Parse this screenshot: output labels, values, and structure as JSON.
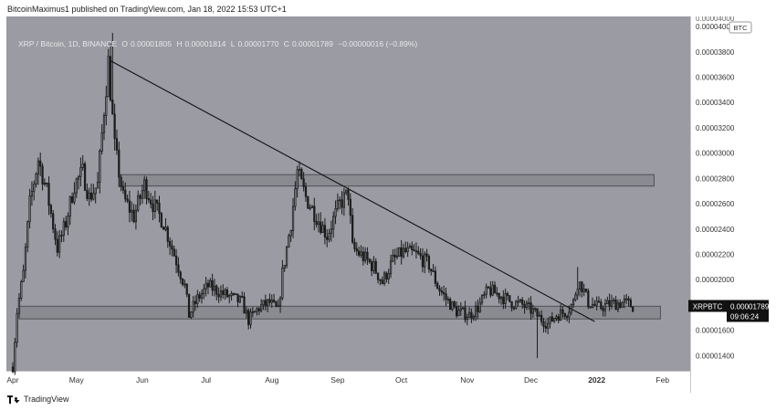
{
  "header": {
    "publisher_line": "BitcoinMaximus1 published on TradingView.com, Jan 18, 2022 15:53 UTC+1"
  },
  "legend": {
    "symbol_desc": "XRP / Bitcoin, 1D, BINANCE",
    "open_label": "O",
    "open": "0.00001805",
    "high_label": "H",
    "high": "0.00001814",
    "low_label": "L",
    "low": "0.00001770",
    "close_label": "C",
    "close": "0.00001789",
    "change": "−0.00000016 (−0.89%)"
  },
  "price_tag": {
    "symbol": "XRPBTC",
    "price": "0.00001789",
    "countdown": "09:06:24"
  },
  "currency_badge": "BTC",
  "footer": {
    "brand": "TradingView"
  },
  "colors": {
    "background": "#9a9ba3",
    "candles": "#1c1c1c",
    "zone_fill": "#8a8b91",
    "zone_stroke": "#505057",
    "trendline": "#111111",
    "price_tag_bg": "#111111"
  },
  "chart_data": {
    "type": "candlestick",
    "title": "XRP / Bitcoin, 1D, BINANCE",
    "y_axis_side": "right",
    "ylim": [
      1.28e-05,
      4.08e-05
    ],
    "y_ticks": [
      "0.00001400",
      "0.00001600",
      "0.00001800",
      "0.00002000",
      "0.00002200",
      "0.00002400",
      "0.00002600",
      "0.00002800",
      "0.00003000",
      "0.00003200",
      "0.00003400",
      "0.00003600",
      "0.00003800",
      "0.00004000"
    ],
    "x_range": [
      "2021-03-29",
      "2022-02-14"
    ],
    "x_ticks": [
      {
        "label": "Apr",
        "date": "2021-04-01",
        "bold": false
      },
      {
        "label": "May",
        "date": "2021-05-01",
        "bold": false
      },
      {
        "label": "Jun",
        "date": "2021-06-01",
        "bold": false
      },
      {
        "label": "Jul",
        "date": "2021-07-01",
        "bold": false
      },
      {
        "label": "Aug",
        "date": "2021-08-01",
        "bold": false
      },
      {
        "label": "Sep",
        "date": "2021-09-01",
        "bold": false
      },
      {
        "label": "Oct",
        "date": "2021-10-01",
        "bold": false
      },
      {
        "label": "Nov",
        "date": "2021-11-01",
        "bold": false
      },
      {
        "label": "Dec",
        "date": "2021-12-01",
        "bold": false
      },
      {
        "label": "2022",
        "date": "2022-01-01",
        "bold": true
      },
      {
        "label": "Feb",
        "date": "2022-02-01",
        "bold": false
      }
    ],
    "close_anchors": [
      [
        "2021-04-01",
        1.31e-05
      ],
      [
        "2021-04-03",
        1.75e-05
      ],
      [
        "2021-04-06",
        2.05e-05
      ],
      [
        "2021-04-09",
        2.6e-05
      ],
      [
        "2021-04-13",
        2.95e-05
      ],
      [
        "2021-04-17",
        2.7e-05
      ],
      [
        "2021-04-22",
        2.25e-05
      ],
      [
        "2021-04-26",
        2.45e-05
      ],
      [
        "2021-04-30",
        2.75e-05
      ],
      [
        "2021-05-04",
        2.85e-05
      ],
      [
        "2021-05-07",
        2.65e-05
      ],
      [
        "2021-05-11",
        2.75e-05
      ],
      [
        "2021-05-14",
        3.35e-05
      ],
      [
        "2021-05-16",
        3.72e-05
      ],
      [
        "2021-05-19",
        3.05e-05
      ],
      [
        "2021-05-23",
        2.65e-05
      ],
      [
        "2021-05-28",
        2.5e-05
      ],
      [
        "2021-06-02",
        2.75e-05
      ],
      [
        "2021-06-06",
        2.6e-05
      ],
      [
        "2021-06-11",
        2.45e-05
      ],
      [
        "2021-06-16",
        2.2e-05
      ],
      [
        "2021-06-21",
        1.95e-05
      ],
      [
        "2021-06-23",
        1.72e-05
      ],
      [
        "2021-06-27",
        1.85e-05
      ],
      [
        "2021-07-02",
        1.95e-05
      ],
      [
        "2021-07-10",
        1.88e-05
      ],
      [
        "2021-07-18",
        1.82e-05
      ],
      [
        "2021-07-21",
        1.68e-05
      ],
      [
        "2021-07-26",
        1.78e-05
      ],
      [
        "2021-07-31",
        1.82e-05
      ],
      [
        "2021-08-04",
        1.75e-05
      ],
      [
        "2021-08-06",
        2.05e-05
      ],
      [
        "2021-08-10",
        2.45e-05
      ],
      [
        "2021-08-13",
        2.85e-05
      ],
      [
        "2021-08-17",
        2.65e-05
      ],
      [
        "2021-08-22",
        2.5e-05
      ],
      [
        "2021-08-27",
        2.35e-05
      ],
      [
        "2021-09-02",
        2.6e-05
      ],
      [
        "2021-09-06",
        2.68e-05
      ],
      [
        "2021-09-08",
        2.25e-05
      ],
      [
        "2021-09-13",
        2.18e-05
      ],
      [
        "2021-09-18",
        2.1e-05
      ],
      [
        "2021-09-22",
        1.98e-05
      ],
      [
        "2021-09-27",
        2.15e-05
      ],
      [
        "2021-10-02",
        2.22e-05
      ],
      [
        "2021-10-08",
        2.2e-05
      ],
      [
        "2021-10-14",
        2.12e-05
      ],
      [
        "2021-10-18",
        1.95e-05
      ],
      [
        "2021-10-22",
        1.85e-05
      ],
      [
        "2021-10-27",
        1.75e-05
      ],
      [
        "2021-11-02",
        1.72e-05
      ],
      [
        "2021-11-06",
        1.78e-05
      ],
      [
        "2021-11-11",
        1.92e-05
      ],
      [
        "2021-11-16",
        1.88e-05
      ],
      [
        "2021-11-22",
        1.82e-05
      ],
      [
        "2021-11-27",
        1.8e-05
      ],
      [
        "2021-12-02",
        1.75e-05
      ],
      [
        "2021-12-05",
        1.7e-05
      ],
      [
        "2021-12-09",
        1.65e-05
      ],
      [
        "2021-12-13",
        1.72e-05
      ],
      [
        "2021-12-18",
        1.75e-05
      ],
      [
        "2021-12-21",
        1.82e-05
      ],
      [
        "2021-12-23",
        1.98e-05
      ],
      [
        "2021-12-25",
        1.95e-05
      ],
      [
        "2021-12-28",
        1.82e-05
      ],
      [
        "2022-01-02",
        1.78e-05
      ],
      [
        "2022-01-08",
        1.81e-05
      ],
      [
        "2022-01-14",
        1.82e-05
      ],
      [
        "2022-01-18",
        1.79e-05
      ]
    ],
    "notable_wicks": [
      {
        "date": "2021-05-18",
        "high": 3.95e-05
      },
      {
        "date": "2021-08-13",
        "high": 2.9e-05
      },
      {
        "date": "2021-09-06",
        "high": 2.73e-05
      },
      {
        "date": "2021-12-04",
        "high": 1.74e-05,
        "low": 1.38e-05
      },
      {
        "date": "2021-12-23",
        "high": 2.1e-05
      }
    ],
    "zones": [
      {
        "from": "2021-05-21",
        "to": "2022-01-28",
        "low": 2.74e-05,
        "high": 2.83e-05
      },
      {
        "from": "2021-04-04",
        "to": "2022-01-31",
        "low": 1.69e-05,
        "high": 1.79e-05
      }
    ],
    "trendline": {
      "from": [
        "2021-05-17",
        3.73e-05
      ],
      "to": [
        "2021-12-31",
        1.67e-05
      ]
    }
  }
}
